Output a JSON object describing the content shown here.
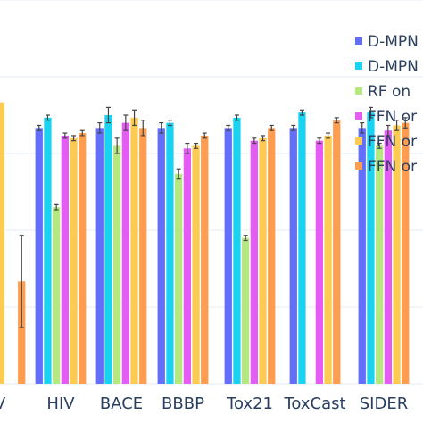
{
  "chart_data": {
    "type": "bar",
    "title": "",
    "xlabel": "",
    "ylabel": "",
    "ylim": [
      0,
      1.5
    ],
    "grid": true,
    "legend_position": "top-right",
    "categories": [
      "V",
      "HIV",
      "BACE",
      "BBBP",
      "Tox21",
      "ToxCast",
      "SIDER"
    ],
    "series": [
      {
        "name": "D-MPN",
        "color": "#636efa",
        "values": [
          null,
          1.0,
          1.0,
          1.0,
          1.0,
          1.0,
          1.0
        ],
        "errors": [
          null,
          0.01,
          0.02,
          0.02,
          0.01,
          0.01,
          0.02
        ]
      },
      {
        "name": "D-MPN",
        "color": "#19d3f3",
        "values": [
          null,
          1.04,
          1.05,
          1.02,
          1.04,
          1.06,
          1.06
        ],
        "errors": [
          null,
          0.01,
          0.03,
          0.01,
          0.01,
          0.01,
          0.02
        ]
      },
      {
        "name": "RF on",
        "color": "#b6e880",
        "values": [
          null,
          0.69,
          0.93,
          0.82,
          0.57,
          null,
          0.93
        ],
        "errors": [
          null,
          0.01,
          0.03,
          0.02,
          0.01,
          null,
          0.01
        ]
      },
      {
        "name": "FFN or",
        "color": "#e45cf3",
        "values": [
          null,
          0.97,
          1.02,
          0.92,
          0.95,
          0.95,
          0.99
        ],
        "errors": [
          null,
          0.01,
          0.03,
          0.02,
          0.01,
          0.01,
          0.02
        ]
      },
      {
        "name": "FFN or",
        "color": "#fecb52",
        "values": [
          null,
          0.96,
          1.04,
          0.93,
          0.96,
          0.97,
          1.01
        ],
        "errors": [
          null,
          0.01,
          0.03,
          0.01,
          0.01,
          0.01,
          0.02
        ]
      },
      {
        "name": "FFN or",
        "color": "#fe9c4f",
        "values": [
          0.4,
          0.98,
          1.0,
          0.97,
          1.0,
          1.03,
          1.02
        ],
        "errors": [
          0.18,
          0.01,
          0.03,
          0.01,
          0.01,
          0.01,
          0.02
        ]
      }
    ],
    "partial_bar": {
      "category": "V",
      "series_color": "#fecb52",
      "value": 1.1
    }
  }
}
